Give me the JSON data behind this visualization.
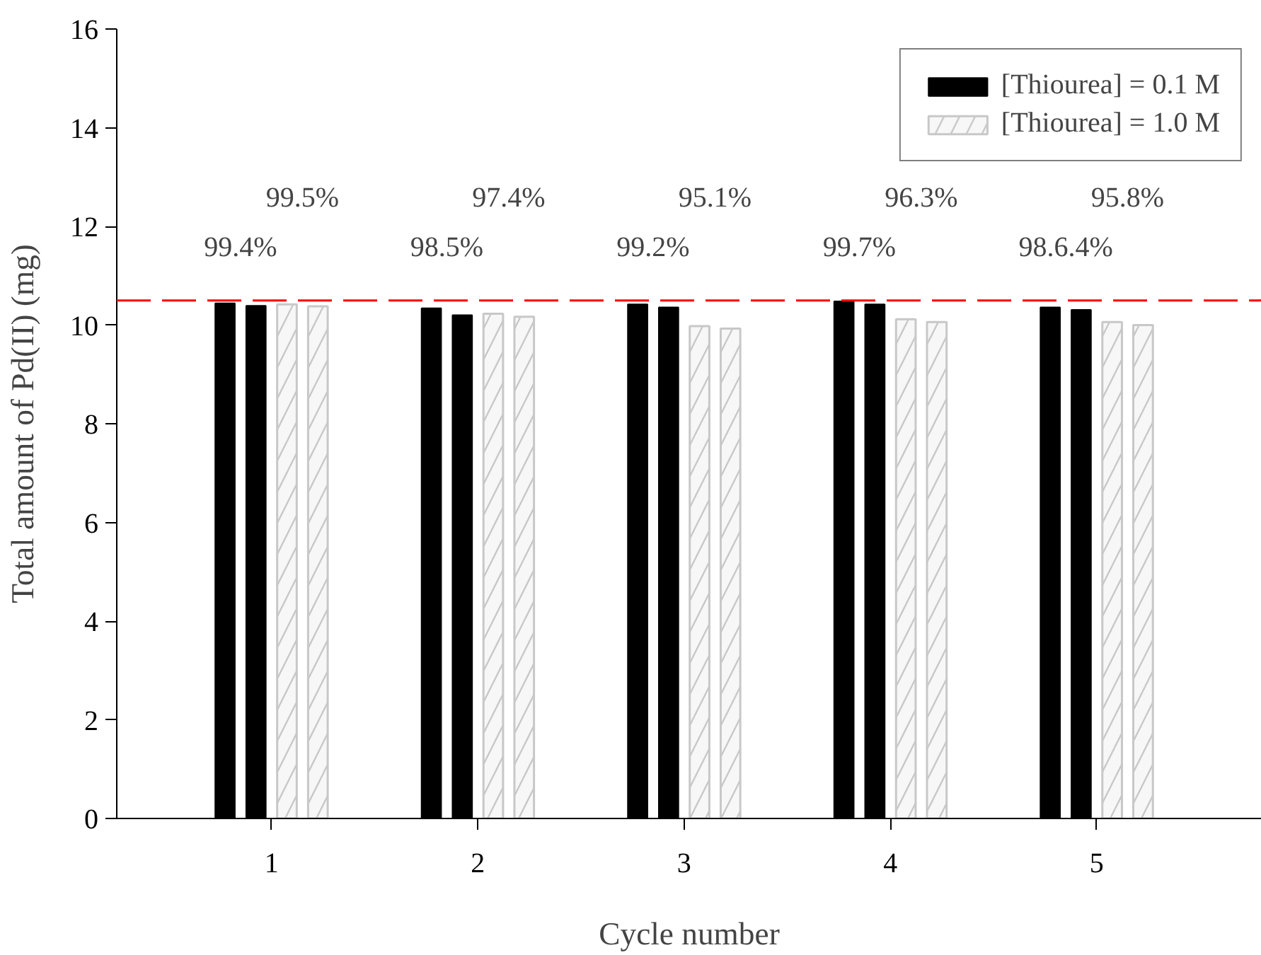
{
  "chart_data": {
    "type": "bar",
    "xlabel": "Cycle number",
    "ylabel": "Total amount of Pd(II) (mg)",
    "series": [
      {
        "name": "[Thiourea] = 0.1 M",
        "color": "#000000",
        "x": [
          0.775,
          1.775,
          2.775,
          3.775,
          4.775
        ],
        "values": [
          10.44,
          10.34,
          10.42,
          10.48,
          10.36
        ]
      },
      {
        "color": "#000000",
        "x": [
          0.925,
          1.925,
          2.925,
          3.925,
          4.925
        ],
        "values": [
          10.39,
          10.2,
          10.36,
          10.42,
          10.31
        ]
      },
      {
        "name": "[Thiourea] = 1.0 M",
        "color": "#c8c8c8",
        "x": [
          1.075,
          2.075,
          3.075,
          4.075,
          5.075
        ],
        "values": [
          10.42,
          10.23,
          9.98,
          10.12,
          10.06
        ]
      },
      {
        "color": "#c8c8c8",
        "x": [
          1.225,
          2.225,
          3.225,
          4.225,
          5.225
        ],
        "values": [
          10.38,
          10.17,
          9.93,
          10.06,
          10.0
        ]
      }
    ],
    "xlim": [
      0.25,
      5.8
    ],
    "xticks": [
      1,
      2,
      3,
      4,
      5
    ],
    "ylim": [
      0,
      16
    ],
    "yticks": [
      0,
      2,
      4,
      6,
      8,
      10,
      12,
      14,
      16
    ],
    "ref_lines": [
      {
        "axis": "y",
        "value": 10.5,
        "color": "#ff0000",
        "line_style": "dashed"
      }
    ],
    "annotations": [
      "99.4%",
      "99.5%",
      "98.5%",
      "97.4%",
      "99.2%",
      "95.1%",
      "99.7%",
      "96.3%",
      "98.6.4%",
      "95.8%"
    ],
    "grid": false,
    "legend": "top right"
  }
}
